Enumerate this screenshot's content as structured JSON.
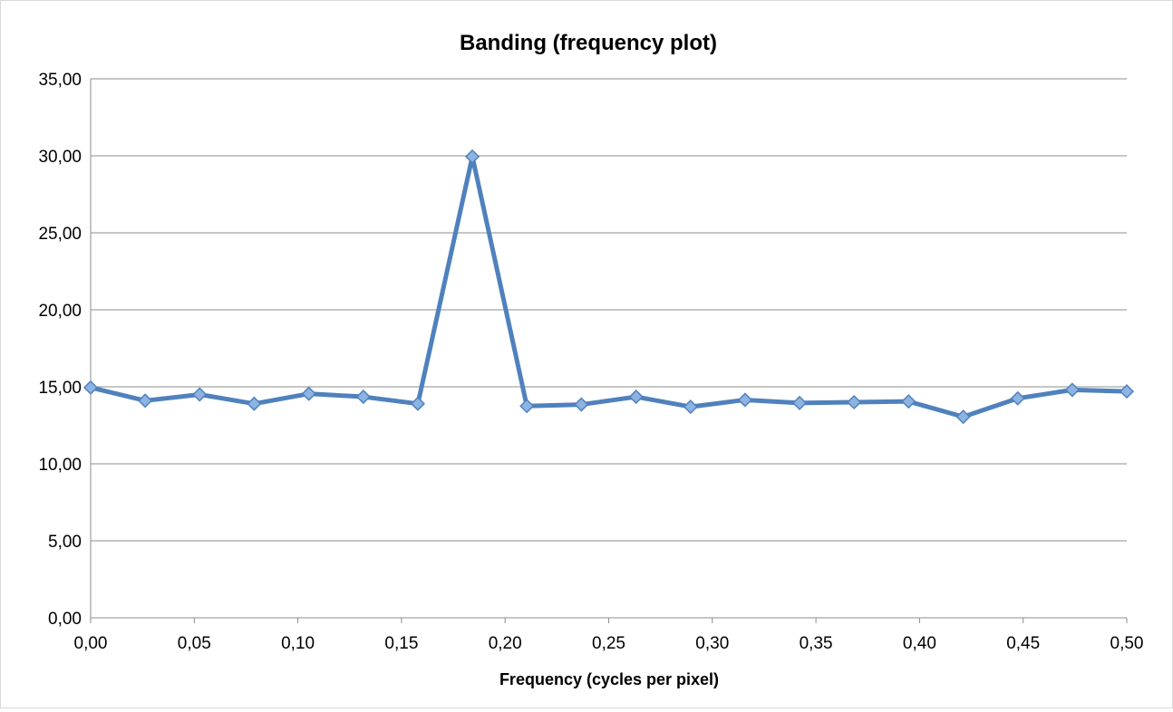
{
  "chart_data": {
    "type": "line",
    "title": "Banding (frequency plot)",
    "xlabel": "Frequency (cycles per pixel)",
    "ylabel": "",
    "xlim": [
      0,
      0.5
    ],
    "ylim": [
      0,
      35
    ],
    "x_ticks": [
      "0,00",
      "0,05",
      "0,10",
      "0,15",
      "0,20",
      "0,25",
      "0,30",
      "0,35",
      "0,40",
      "0,45",
      "0,50"
    ],
    "y_ticks": [
      "0,00",
      "5,00",
      "10,00",
      "15,00",
      "20,00",
      "25,00",
      "30,00",
      "35,00"
    ],
    "grid": "horizontal",
    "legend": "none",
    "series": [
      {
        "color": "#4f81bd",
        "marker": "diamond",
        "x": [
          0.0,
          0.0263,
          0.0526,
          0.0789,
          0.1053,
          0.1316,
          0.1579,
          0.1842,
          0.2105,
          0.2368,
          0.2632,
          0.2895,
          0.3158,
          0.3421,
          0.3684,
          0.3947,
          0.4211,
          0.4474,
          0.4737,
          0.5
        ],
        "y": [
          14.95,
          14.1,
          14.5,
          13.9,
          14.55,
          14.35,
          13.9,
          29.95,
          13.75,
          13.85,
          14.35,
          13.7,
          14.15,
          13.95,
          14.0,
          14.05,
          13.05,
          14.25,
          14.8,
          14.7
        ]
      }
    ]
  }
}
